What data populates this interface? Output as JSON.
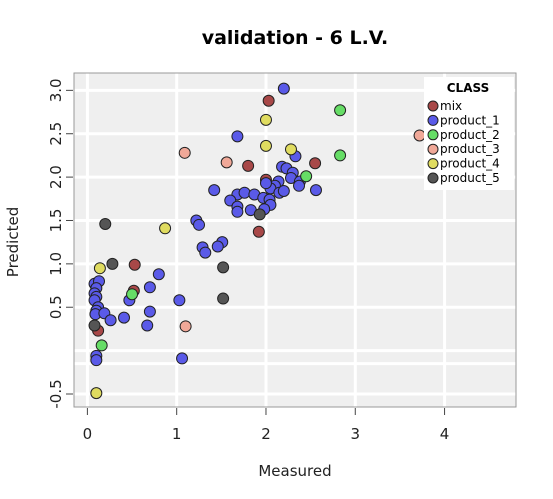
{
  "chart_data": {
    "type": "scatter",
    "title": "validation - 6 L.V.",
    "xlabel": "Measured",
    "ylabel": "Predicted",
    "xlim": [
      -0.15,
      4.8
    ],
    "ylim": [
      -0.65,
      3.2
    ],
    "x_ticks": [
      0,
      1,
      2,
      3,
      4
    ],
    "y_ticks": [
      -0.5,
      0.5,
      1.0,
      1.5,
      2.0,
      2.5,
      3.0
    ],
    "y_tick_labels": [
      "-0.5",
      "0.5",
      "1.0",
      "1.5",
      "2.0",
      "2.5",
      "3.0"
    ],
    "y_grid": [
      -0.5,
      -0.15,
      0,
      0.5,
      1.0,
      1.5,
      2.0,
      2.5,
      3.0
    ],
    "grid": true,
    "background": "#efefef",
    "legend": {
      "title": "CLASS",
      "placement": "top-right",
      "entries": [
        {
          "name": "mix",
          "color": "#a84848"
        },
        {
          "name": "product_1",
          "color": "#5a5ae8"
        },
        {
          "name": "product_2",
          "color": "#66dd66"
        },
        {
          "name": "product_3",
          "color": "#f0a898"
        },
        {
          "name": "product_4",
          "color": "#e0dc60"
        },
        {
          "name": "product_5",
          "color": "#555555"
        }
      ]
    },
    "series": [
      {
        "name": "mix",
        "color": "#a84848",
        "points": [
          [
            2.03,
            2.88
          ],
          [
            1.8,
            2.13
          ],
          [
            2.0,
            1.97
          ],
          [
            2.55,
            2.16
          ],
          [
            1.92,
            1.37
          ],
          [
            0.53,
            0.99
          ],
          [
            0.52,
            0.69
          ],
          [
            0.12,
            0.23
          ]
        ]
      },
      {
        "name": "product_1",
        "color": "#5a5ae8",
        "points": [
          [
            2.2,
            3.02
          ],
          [
            1.68,
            2.47
          ],
          [
            2.33,
            2.24
          ],
          [
            2.18,
            2.12
          ],
          [
            2.23,
            2.1
          ],
          [
            2.3,
            2.05
          ],
          [
            2.28,
            1.99
          ],
          [
            2.38,
            1.95
          ],
          [
            2.37,
            1.9
          ],
          [
            2.14,
            1.95
          ],
          [
            2.1,
            1.9
          ],
          [
            2.05,
            1.87
          ],
          [
            2.0,
            1.93
          ],
          [
            2.15,
            1.82
          ],
          [
            2.2,
            1.84
          ],
          [
            2.56,
            1.85
          ],
          [
            1.42,
            1.85
          ],
          [
            1.68,
            1.8
          ],
          [
            1.76,
            1.82
          ],
          [
            1.87,
            1.8
          ],
          [
            1.97,
            1.76
          ],
          [
            2.04,
            1.74
          ],
          [
            2.05,
            1.68
          ],
          [
            1.98,
            1.63
          ],
          [
            1.6,
            1.73
          ],
          [
            1.68,
            1.66
          ],
          [
            1.68,
            1.6
          ],
          [
            1.83,
            1.62
          ],
          [
            1.22,
            1.5
          ],
          [
            1.25,
            1.45
          ],
          [
            1.51,
            1.25
          ],
          [
            1.46,
            1.2
          ],
          [
            1.29,
            1.19
          ],
          [
            1.32,
            1.13
          ],
          [
            0.8,
            0.88
          ],
          [
            0.7,
            0.73
          ],
          [
            1.03,
            0.58
          ],
          [
            0.08,
            0.77
          ],
          [
            0.13,
            0.8
          ],
          [
            0.1,
            0.72
          ],
          [
            0.08,
            0.66
          ],
          [
            0.1,
            0.62
          ],
          [
            0.08,
            0.58
          ],
          [
            0.12,
            0.5
          ],
          [
            0.1,
            0.46
          ],
          [
            0.09,
            0.42
          ],
          [
            0.19,
            0.43
          ],
          [
            0.47,
            0.58
          ],
          [
            0.7,
            0.45
          ],
          [
            0.41,
            0.38
          ],
          [
            0.26,
            0.35
          ],
          [
            0.67,
            0.29
          ],
          [
            0.1,
            -0.06
          ],
          [
            0.1,
            -0.11
          ],
          [
            1.06,
            -0.09
          ]
        ]
      },
      {
        "name": "product_2",
        "color": "#66dd66",
        "points": [
          [
            2.83,
            2.77
          ],
          [
            2.83,
            2.25
          ],
          [
            2.45,
            2.01
          ],
          [
            0.5,
            0.65
          ],
          [
            0.16,
            0.06
          ]
        ]
      },
      {
        "name": "product_3",
        "color": "#f0a898",
        "points": [
          [
            3.72,
            2.48
          ],
          [
            1.09,
            2.28
          ],
          [
            1.56,
            2.17
          ],
          [
            1.1,
            0.28
          ]
        ]
      },
      {
        "name": "product_4",
        "color": "#e0dc60",
        "points": [
          [
            2.0,
            2.66
          ],
          [
            2.0,
            2.36
          ],
          [
            2.28,
            2.32
          ],
          [
            0.87,
            1.41
          ],
          [
            0.14,
            0.95
          ],
          [
            0.1,
            -0.49
          ]
        ]
      },
      {
        "name": "product_5",
        "color": "#555555",
        "points": [
          [
            0.2,
            1.46
          ],
          [
            1.93,
            1.57
          ],
          [
            0.28,
            1.0
          ],
          [
            1.52,
            0.96
          ],
          [
            1.52,
            0.6
          ],
          [
            0.08,
            0.29
          ]
        ]
      }
    ]
  }
}
